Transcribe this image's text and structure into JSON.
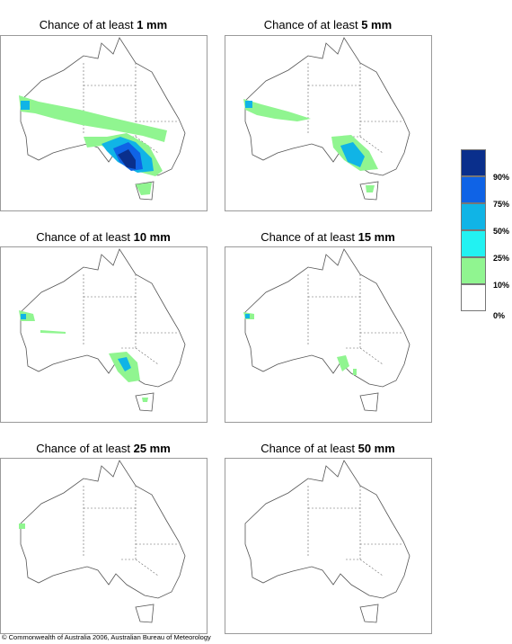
{
  "panels": [
    {
      "title_prefix": "Chance of at least",
      "amount": "1 mm"
    },
    {
      "title_prefix": "Chance of at least",
      "amount": "5 mm"
    },
    {
      "title_prefix": "Chance of at least",
      "amount": "10 mm"
    },
    {
      "title_prefix": "Chance of at least",
      "amount": "15 mm"
    },
    {
      "title_prefix": "Chance of at least",
      "amount": "25 mm"
    },
    {
      "title_prefix": "Chance of at least",
      "amount": "50 mm"
    }
  ],
  "legend": {
    "labels": [
      "90%",
      "75%",
      "50%",
      "25%",
      "10%",
      "0%"
    ],
    "colors": [
      "#0a2f8c",
      "#0f63e6",
      "#10b4e6",
      "#22f2f2",
      "#90f590",
      "#ffffff"
    ]
  },
  "footer": "© Commonwealth of Australia 2006, Australian Bureau of Meteorology"
}
